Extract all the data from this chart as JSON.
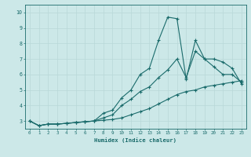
{
  "xlabel": "Humidex (Indice chaleur)",
  "background_color": "#cce8e8",
  "line_color": "#1a6b6b",
  "grid_color": "#b8d8d8",
  "xlim": [
    -0.5,
    23.5
  ],
  "ylim": [
    2.5,
    10.5
  ],
  "xtick_vals": [
    0,
    1,
    2,
    3,
    4,
    5,
    6,
    7,
    8,
    9,
    10,
    11,
    12,
    13,
    14,
    15,
    16,
    17,
    18,
    19,
    20,
    21,
    22,
    23
  ],
  "ytick_vals": [
    3,
    4,
    5,
    6,
    7,
    8,
    9,
    10
  ],
  "series": [
    [
      3.0,
      2.7,
      2.8,
      2.8,
      2.85,
      2.9,
      2.95,
      3.0,
      3.5,
      3.7,
      4.5,
      5.0,
      6.0,
      6.4,
      8.2,
      9.7,
      9.6,
      5.7,
      8.2,
      7.0,
      6.5,
      6.0,
      6.0,
      5.5
    ],
    [
      3.0,
      2.7,
      2.8,
      2.8,
      2.85,
      2.9,
      2.95,
      3.0,
      3.2,
      3.4,
      4.0,
      4.4,
      4.9,
      5.2,
      5.8,
      6.3,
      7.0,
      5.8,
      7.5,
      7.0,
      7.0,
      6.8,
      6.4,
      5.4
    ],
    [
      3.0,
      2.7,
      2.8,
      2.8,
      2.85,
      2.9,
      2.95,
      3.0,
      3.05,
      3.1,
      3.2,
      3.4,
      3.6,
      3.8,
      4.1,
      4.4,
      4.7,
      4.9,
      5.0,
      5.2,
      5.3,
      5.4,
      5.5,
      5.6
    ]
  ]
}
